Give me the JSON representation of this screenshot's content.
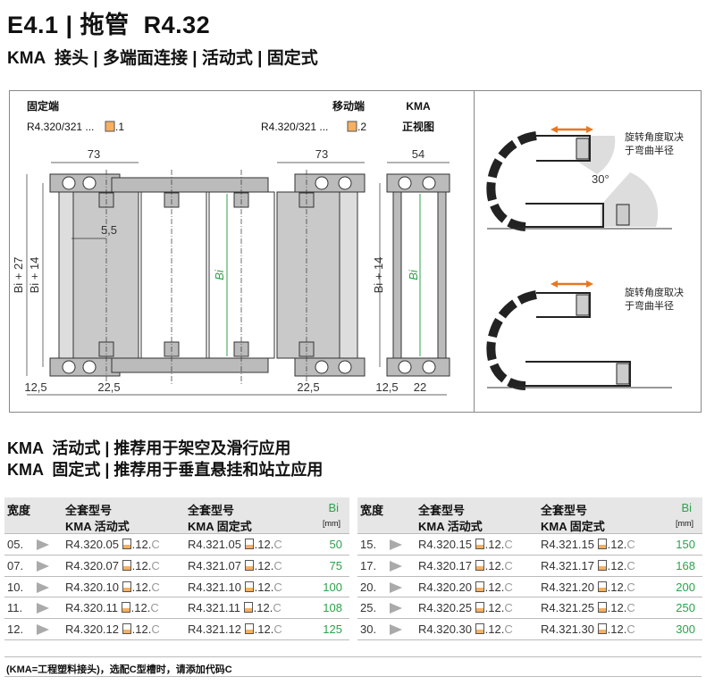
{
  "header": {
    "title": "E4.1 | 拖管  R4.32",
    "subtitle": "KMA  接头 | 多端面连接 | 活动式 | 固定式"
  },
  "drawing": {
    "fixed_end_label": "固定端",
    "fixed_end_code": "R4.320/321 ...",
    "fixed_end_suffix": ".1",
    "moving_end_label": "移动端",
    "moving_end_code": "R4.320/321 ...",
    "moving_end_suffix": ".2",
    "front_view_title": "KMA",
    "front_view_label": "正视图",
    "dim_73_left": "73",
    "dim_73_right": "73",
    "dim_54": "54",
    "dim_5_5": "5,5",
    "dim_bi27": "Bi + 27",
    "dim_bi14": "Bi + 14",
    "dim_bi": "Bi",
    "dim_bi14_front": "Bi + 14",
    "dim_bi_front": "Bi",
    "dim_12_5_left": "12,5",
    "dim_22_5_left": "22,5",
    "dim_22_5_right": "22,5",
    "dim_12_5_right": "12,5",
    "dim_22": "22",
    "angle": "30°",
    "rotation_note_1a": "旋转角度取决",
    "rotation_note_1b": "于弯曲半径",
    "rotation_note_2a": "旋转角度取决",
    "rotation_note_2b": "于弯曲半径",
    "accent_color": "#e87722",
    "dimension_color": "#2ca24c"
  },
  "sections": {
    "line1": "KMA  活动式 | 推荐用于架空及滑行应用",
    "line2": "KMA  固定式 | 推荐用于垂直悬挂和站立应用"
  },
  "table": {
    "headers": {
      "width": "宽度",
      "set_no": "全套型号",
      "moving": "KMA  活动式",
      "fixed": "KMA  固定式",
      "bi": "Bi",
      "unit": "[mm]"
    },
    "suffix": ".12.",
    "option": "C",
    "left_rows": [
      {
        "width": "05.",
        "moving": "R4.320.05",
        "fixed": "R4.321.05",
        "bi": "50"
      },
      {
        "width": "07.",
        "moving": "R4.320.07",
        "fixed": "R4.321.07",
        "bi": "75"
      },
      {
        "width": "10.",
        "moving": "R4.320.10",
        "fixed": "R4.321.10",
        "bi": "100"
      },
      {
        "width": "11.",
        "moving": "R4.320.11",
        "fixed": "R4.321.11",
        "bi": "108"
      },
      {
        "width": "12.",
        "moving": "R4.320.12",
        "fixed": "R4.321.12",
        "bi": "125"
      }
    ],
    "right_rows": [
      {
        "width": "15.",
        "moving": "R4.320.15",
        "fixed": "R4.321.15",
        "bi": "150"
      },
      {
        "width": "17.",
        "moving": "R4.320.17",
        "fixed": "R4.321.17",
        "bi": "168"
      },
      {
        "width": "20.",
        "moving": "R4.320.20",
        "fixed": "R4.321.20",
        "bi": "200"
      },
      {
        "width": "25.",
        "moving": "R4.320.25",
        "fixed": "R4.321.25",
        "bi": "250"
      },
      {
        "width": "30.",
        "moving": "R4.320.30",
        "fixed": "R4.321.30",
        "bi": "300"
      }
    ]
  },
  "footnote": "(KMA=工程塑料接头)，选配C型槽时，请添加代码C"
}
